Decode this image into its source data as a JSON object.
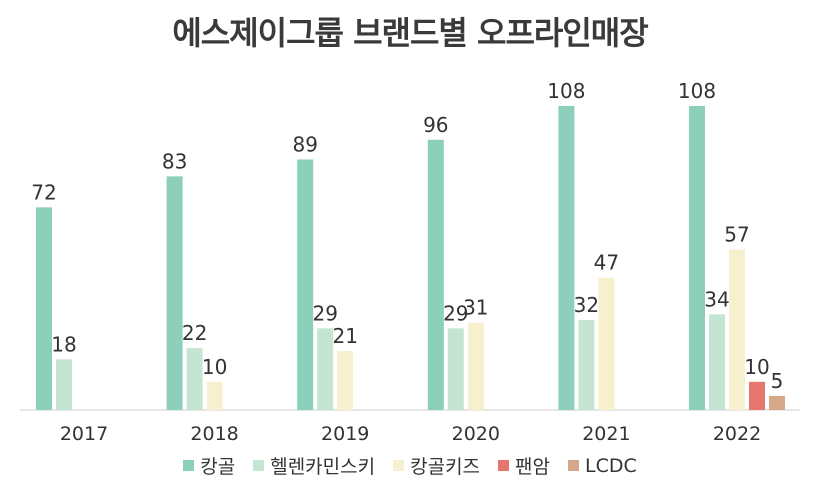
{
  "chart_data": {
    "type": "bar",
    "title": "에스제이그룹 브랜드별 오프라인매장",
    "categories": [
      "2017",
      "2018",
      "2019",
      "2020",
      "2021",
      "2022"
    ],
    "series": [
      {
        "name": "캉골",
        "color": "#8ccfbb",
        "values": [
          72,
          83,
          89,
          96,
          108,
          108
        ]
      },
      {
        "name": "헬렌카민스키",
        "color": "#c5e5d3",
        "values": [
          18,
          22,
          29,
          29,
          32,
          34
        ]
      },
      {
        "name": "캉골키즈",
        "color": "#f7f0cf",
        "values": [
          null,
          10,
          21,
          31,
          47,
          57
        ]
      },
      {
        "name": "팬암",
        "color": "#e5776e",
        "values": [
          null,
          null,
          null,
          null,
          null,
          10
        ]
      },
      {
        "name": "LCDC",
        "color": "#d6a88a",
        "values": [
          null,
          null,
          null,
          null,
          null,
          5
        ]
      }
    ],
    "ylim": [
      0,
      108
    ],
    "legend_position": "bottom"
  }
}
